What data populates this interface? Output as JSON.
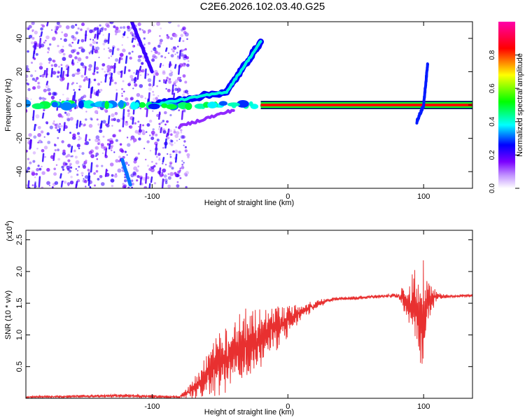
{
  "title": "C2E6.2026.102.03.40.G25",
  "chart_data": [
    {
      "type": "heatmap",
      "name": "spectrogram",
      "xlabel": "Height of straight line (km)",
      "ylabel": "Frequency (Hz)",
      "xlim": [
        -193,
        136
      ],
      "ylim": [
        -50,
        50
      ],
      "xticks": [
        -100,
        0,
        100
      ],
      "xtick_labels": [
        "-100",
        "0",
        "100"
      ],
      "yticks": [
        -40,
        -20,
        0,
        20,
        40
      ],
      "ytick_labels": [
        "-40",
        "-20",
        "0",
        "20",
        "40"
      ],
      "colorbar": {
        "label": "Normalized spectral amplitude",
        "range": [
          0,
          1
        ],
        "ticks": [
          0.0,
          0.2,
          0.4,
          0.6,
          0.8
        ],
        "tick_labels": [
          "0.0",
          "0.2",
          "0.4",
          "0.6",
          "0.8"
        ],
        "colormap": [
          "#ffffff",
          "#7b00ff",
          "#0000ff",
          "#00ffff",
          "#00ff00",
          "#ffff00",
          "#ff0000",
          "#ff00aa"
        ]
      },
      "features": [
        {
          "name": "main-carrier",
          "x": [
            -193,
            136
          ],
          "y": [
            0,
            0
          ]
        },
        {
          "name": "rising-branch",
          "x": [
            -100,
            -45,
            -20
          ],
          "y": [
            0,
            8,
            38
          ]
        },
        {
          "name": "falling-branch",
          "x": [
            -80,
            -40
          ],
          "y": [
            -13,
            -3
          ]
        },
        {
          "name": "diagonal-streak-upper",
          "x": [
            -115,
            -100
          ],
          "y": [
            50,
            20
          ]
        },
        {
          "name": "diagonal-streak-lower",
          "x": [
            -122,
            -116
          ],
          "y": [
            -33,
            -48
          ]
        }
      ]
    },
    {
      "type": "line",
      "name": "snr",
      "xlabel": "Height of straight line (km)",
      "ylabel": "SNR (10 * v/v)",
      "y_multiplier": "(x10",
      "y_multiplier_exp": "4",
      "y_multiplier_close": ")",
      "xlim": [
        -193,
        136
      ],
      "ylim": [
        0,
        2.65
      ],
      "xticks": [
        -100,
        0,
        100
      ],
      "xtick_labels": [
        "-100",
        "0",
        "100"
      ],
      "yticks": [
        0.5,
        1.0,
        1.5,
        2.0,
        2.5
      ],
      "ytick_labels": [
        "0.5",
        "1.0",
        "1.5",
        "2.0",
        "2.5"
      ],
      "color": "#e83030",
      "envelope": {
        "x": [
          -193,
          -120,
          -80,
          -70,
          -60,
          -50,
          -40,
          -30,
          -20,
          -10,
          0,
          10,
          20,
          30,
          40,
          50,
          60,
          70,
          80,
          88,
          95,
          100,
          103,
          106,
          110,
          120,
          136
        ],
        "y_mid": [
          0.02,
          0.04,
          0.02,
          0.15,
          0.35,
          0.55,
          0.72,
          0.85,
          0.98,
          1.1,
          1.22,
          1.36,
          1.47,
          1.55,
          1.58,
          1.58,
          1.6,
          1.61,
          1.62,
          1.55,
          1.4,
          1.3,
          1.55,
          1.6,
          1.61,
          1.61,
          1.62
        ],
        "y_amp": [
          0.02,
          0.03,
          0.02,
          0.18,
          0.35,
          0.55,
          0.55,
          0.6,
          0.5,
          0.4,
          0.28,
          0.14,
          0.08,
          0.04,
          0.03,
          0.03,
          0.03,
          0.03,
          0.05,
          0.35,
          0.7,
          1.15,
          0.6,
          0.25,
          0.06,
          0.03,
          0.03
        ]
      }
    }
  ]
}
